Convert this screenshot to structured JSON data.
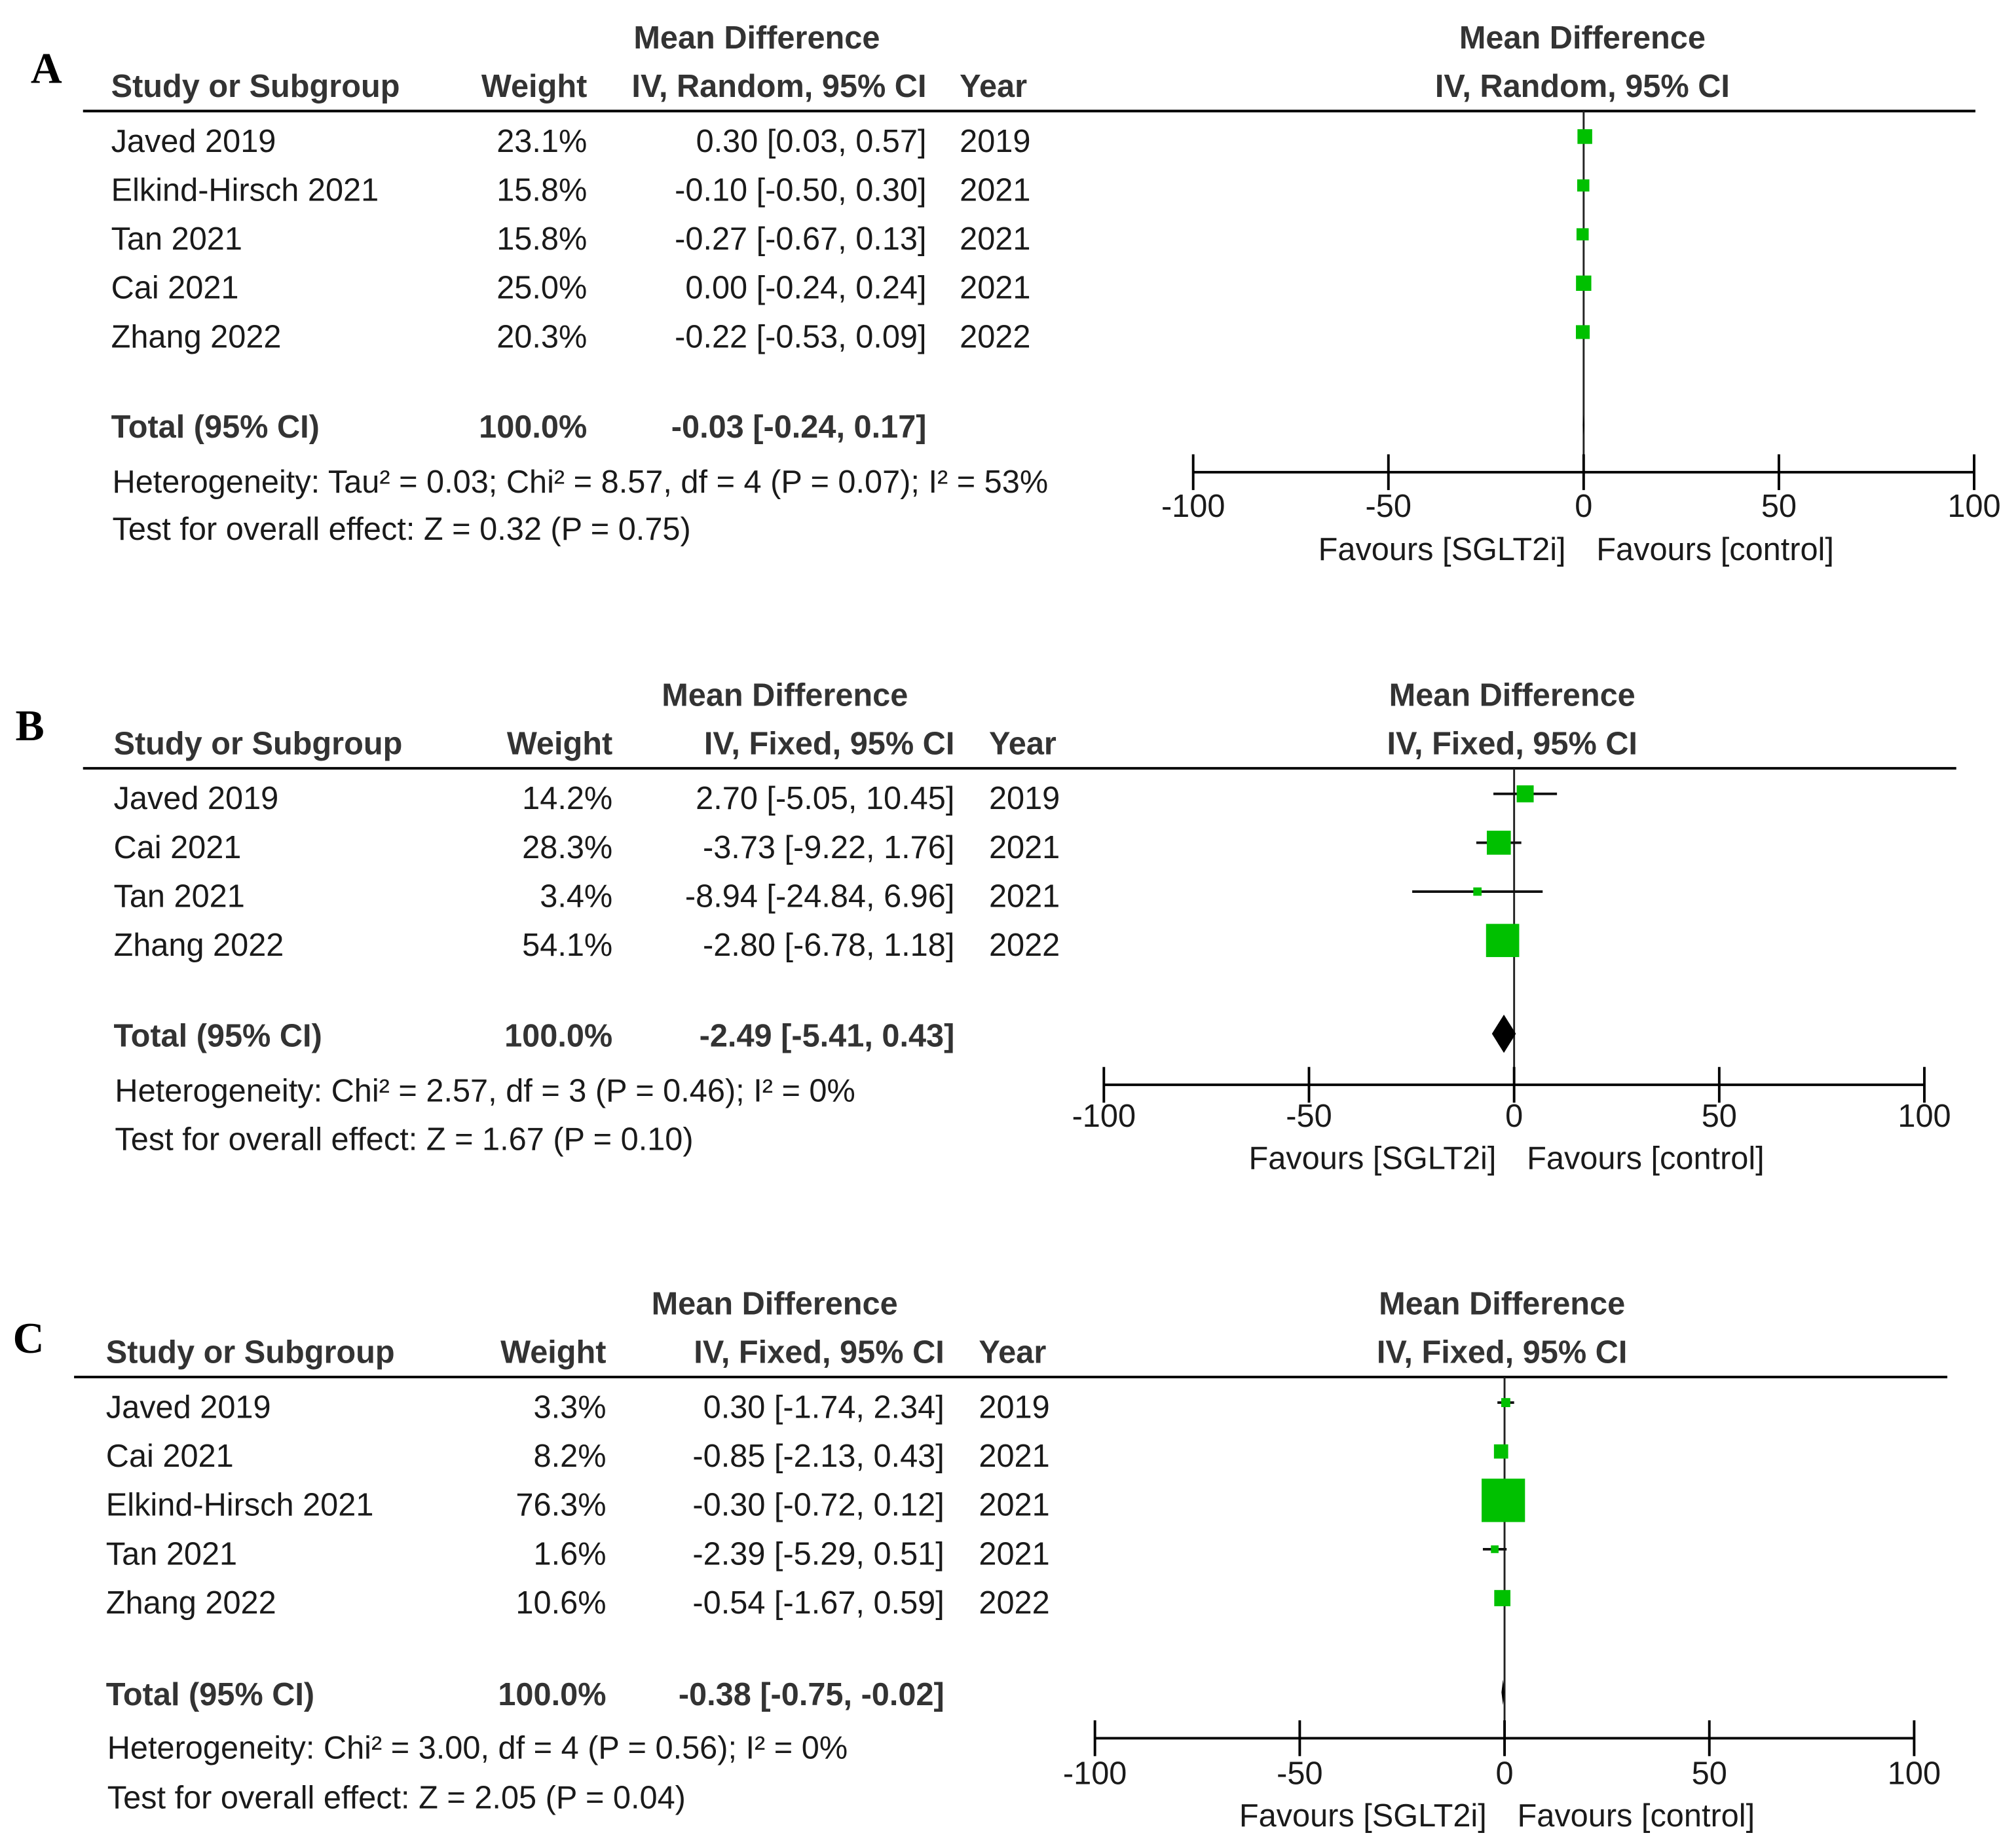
{
  "chart_data": [
    {
      "type": "forest",
      "panel": "A",
      "header": {
        "group": "Mean Difference",
        "method": "IV, Random, 95% CI",
        "study": "Study or Subgroup",
        "weight": "Weight",
        "year": "Year"
      },
      "plot_header": {
        "group": "Mean Difference",
        "method": "IV, Random, 95% CI"
      },
      "rows": [
        {
          "study": "Javed 2019",
          "weight": "23.1%",
          "ci": "0.30 [0.03, 0.57]",
          "year": "2019",
          "w": 23.1,
          "md": 0.3,
          "lo": 0.03,
          "hi": 0.57
        },
        {
          "study": "Elkind-Hirsch 2021",
          "weight": "15.8%",
          "ci": "-0.10 [-0.50, 0.30]",
          "year": "2021",
          "w": 15.8,
          "md": -0.1,
          "lo": -0.5,
          "hi": 0.3
        },
        {
          "study": "Tan 2021",
          "weight": "15.8%",
          "ci": "-0.27 [-0.67, 0.13]",
          "year": "2021",
          "w": 15.8,
          "md": -0.27,
          "lo": -0.67,
          "hi": 0.13
        },
        {
          "study": "Cai 2021",
          "weight": "25.0%",
          "ci": "0.00 [-0.24, 0.24]",
          "year": "2021",
          "w": 25.0,
          "md": 0.0,
          "lo": -0.24,
          "hi": 0.24
        },
        {
          "study": "Zhang 2022",
          "weight": "20.3%",
          "ci": "-0.22 [-0.53, 0.09]",
          "year": "2022",
          "w": 20.3,
          "md": -0.22,
          "lo": -0.53,
          "hi": 0.09
        }
      ],
      "total": {
        "label": "Total (95% CI)",
        "weight": "100.0%",
        "ci": "-0.03 [-0.24, 0.17]",
        "md": -0.03,
        "lo": -0.24,
        "hi": 0.17
      },
      "heterogeneity": "Heterogeneity: Tau² = 0.03; Chi² = 8.57, df = 4 (P = 0.07); I² = 53%",
      "overall_effect": "Test for overall effect: Z = 0.32 (P = 0.75)",
      "xlim": [
        -100,
        100
      ],
      "ticks": [
        -100,
        -50,
        0,
        50,
        100
      ],
      "tick_labels": [
        "-100",
        "-50",
        "0",
        "50",
        "100"
      ],
      "favours_left": "Favours [SGLT2i]",
      "favours_right": "Favours [control]"
    },
    {
      "type": "forest",
      "panel": "B",
      "header": {
        "group": "Mean Difference",
        "method": "IV, Fixed, 95% CI",
        "study": "Study or Subgroup",
        "weight": "Weight",
        "year": "Year"
      },
      "plot_header": {
        "group": "Mean Difference",
        "method": "IV, Fixed, 95% CI"
      },
      "rows": [
        {
          "study": "Javed 2019",
          "weight": "14.2%",
          "ci": "2.70 [-5.05, 10.45]",
          "year": "2019",
          "w": 14.2,
          "md": 2.7,
          "lo": -5.05,
          "hi": 10.45
        },
        {
          "study": "Cai 2021",
          "weight": "28.3%",
          "ci": "-3.73 [-9.22, 1.76]",
          "year": "2021",
          "w": 28.3,
          "md": -3.73,
          "lo": -9.22,
          "hi": 1.76
        },
        {
          "study": "Tan 2021",
          "weight": "3.4%",
          "ci": "-8.94 [-24.84, 6.96]",
          "year": "2021",
          "w": 3.4,
          "md": -8.94,
          "lo": -24.84,
          "hi": 6.96
        },
        {
          "study": "Zhang 2022",
          "weight": "54.1%",
          "ci": "-2.80 [-6.78, 1.18]",
          "year": "2022",
          "w": 54.1,
          "md": -2.8,
          "lo": -6.78,
          "hi": 1.18
        }
      ],
      "total": {
        "label": "Total (95% CI)",
        "weight": "100.0%",
        "ci": "-2.49 [-5.41, 0.43]",
        "md": -2.49,
        "lo": -5.41,
        "hi": 0.43
      },
      "heterogeneity": "Heterogeneity: Chi² = 2.57, df = 3 (P = 0.46); I² = 0%",
      "overall_effect": "Test for overall effect: Z = 1.67 (P = 0.10)",
      "xlim": [
        -100,
        100
      ],
      "ticks": [
        -100,
        -50,
        0,
        50,
        100
      ],
      "tick_labels": [
        "-100",
        "-50",
        "0",
        "50",
        "100"
      ],
      "favours_left": "Favours [SGLT2i]",
      "favours_right": "Favours [control]"
    },
    {
      "type": "forest",
      "panel": "C",
      "header": {
        "group": "Mean Difference",
        "method": "IV, Fixed, 95% CI",
        "study": "Study or Subgroup",
        "weight": "Weight",
        "year": "Year"
      },
      "plot_header": {
        "group": "Mean Difference",
        "method": "IV, Fixed, 95% CI"
      },
      "rows": [
        {
          "study": "Javed 2019",
          "weight": "3.3%",
          "ci": "0.30 [-1.74, 2.34]",
          "year": "2019",
          "w": 3.3,
          "md": 0.3,
          "lo": -1.74,
          "hi": 2.34
        },
        {
          "study": "Cai 2021",
          "weight": "8.2%",
          "ci": "-0.85 [-2.13, 0.43]",
          "year": "2021",
          "w": 8.2,
          "md": -0.85,
          "lo": -2.13,
          "hi": 0.43
        },
        {
          "study": "Elkind-Hirsch 2021",
          "weight": "76.3%",
          "ci": "-0.30 [-0.72, 0.12]",
          "year": "2021",
          "w": 76.3,
          "md": -0.3,
          "lo": -0.72,
          "hi": 0.12
        },
        {
          "study": "Tan 2021",
          "weight": "1.6%",
          "ci": "-2.39 [-5.29, 0.51]",
          "year": "2021",
          "w": 1.6,
          "md": -2.39,
          "lo": -5.29,
          "hi": 0.51
        },
        {
          "study": "Zhang 2022",
          "weight": "10.6%",
          "ci": "-0.54 [-1.67, 0.59]",
          "year": "2022",
          "w": 10.6,
          "md": -0.54,
          "lo": -1.67,
          "hi": 0.59
        }
      ],
      "total": {
        "label": "Total (95% CI)",
        "weight": "100.0%",
        "ci": "-0.38 [-0.75, -0.02]",
        "md": -0.38,
        "lo": -0.75,
        "hi": -0.02
      },
      "heterogeneity": "Heterogeneity: Chi² = 3.00, df = 4 (P = 0.56); I² = 0%",
      "overall_effect": "Test for overall effect: Z = 2.05 (P = 0.04)",
      "xlim": [
        -100,
        100
      ],
      "ticks": [
        -100,
        -50,
        0,
        50,
        100
      ],
      "tick_labels": [
        "-100",
        "-50",
        "0",
        "50",
        "100"
      ],
      "favours_left": "Favours [SGLT2i]",
      "favours_right": "Favours [control]"
    }
  ],
  "colors": {
    "marker": "#00c000",
    "line": "#000000",
    "text": "#1a1a1a"
  }
}
